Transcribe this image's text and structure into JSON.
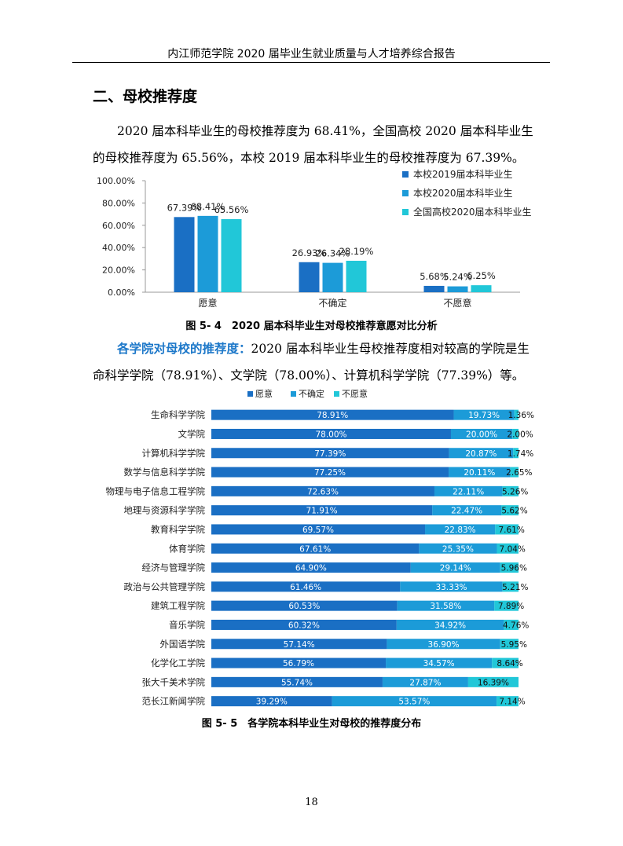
{
  "header": {
    "title": "内江师范学院 2020 届毕业生就业质量与人才培养综合报告"
  },
  "section": {
    "title": "二、母校推荐度"
  },
  "paragraph1": {
    "text": "2020 届本科毕业生的母校推荐度为 68.41%，全国高校 2020 届本科毕业生的母校推荐度为 65.56%，本校 2019 届本科毕业生的母校推荐度为 67.39%。"
  },
  "figure1": {
    "caption": "图 5- 4　2020 届本科毕业生对母校推荐意愿对比分析"
  },
  "paragraph2": {
    "lead": "各学院对母校的推荐度：",
    "text": "2020 届本科毕业生母校推荐度相对较高的学院是生命科学学院（78.91%）、文学院（78.00%）、计算机科学学院（77.39%）等。"
  },
  "figure2": {
    "caption": "图 5- 5　各学院本科毕业生对母校的推荐度分布"
  },
  "page_number": "18",
  "colors": {
    "dark_blue": "#1a6fc4",
    "mid_blue": "#1c9bd8",
    "cyan": "#21c7d8",
    "accent_text": "#1d78c9"
  },
  "chart_data": [
    {
      "type": "bar",
      "title": "",
      "categories": [
        "愿意",
        "不确定",
        "不愿意"
      ],
      "ylim": [
        0,
        100
      ],
      "y_ticks": [
        "0.00%",
        "20.00%",
        "40.00%",
        "60.00%",
        "80.00%",
        "100.00%"
      ],
      "legend_position": "top-right",
      "series": [
        {
          "name": "本校2019届本科毕业生",
          "values": [
            67.39,
            26.93,
            5.68
          ],
          "labels": [
            "67.39%",
            "26.93%",
            "5.68%"
          ],
          "color": "#1a6fc4"
        },
        {
          "name": "本校2020届本科毕业生",
          "values": [
            68.41,
            26.34,
            5.24
          ],
          "labels": [
            "68.41%",
            "26.34%",
            "5.24%"
          ],
          "color": "#1c9bd8"
        },
        {
          "name": "全国高校2020届本科毕业生",
          "values": [
            65.56,
            28.19,
            6.25
          ],
          "labels": [
            "65.56%",
            "28.19%",
            "6.25%"
          ],
          "color": "#21c7d8"
        }
      ]
    },
    {
      "type": "bar",
      "stacked": true,
      "orientation": "horizontal",
      "legend_position": "top",
      "categories": [
        "生命科学学院",
        "文学院",
        "计算机科学学院",
        "数学与信息科学学院",
        "物理与电子信息工程学院",
        "地理与资源科学学院",
        "教育科学学院",
        "体育学院",
        "经济与管理学院",
        "政治与公共管理学院",
        "建筑工程学院",
        "音乐学院",
        "外国语学院",
        "化学化工学院",
        "张大千美术学院",
        "范长江新闻学院"
      ],
      "series": [
        {
          "name": "愿意",
          "color": "#1a6fc4",
          "values": [
            78.91,
            78.0,
            77.39,
            77.25,
            72.63,
            71.91,
            69.57,
            67.61,
            64.9,
            61.46,
            60.53,
            60.32,
            57.14,
            56.79,
            55.74,
            39.29
          ],
          "labels": [
            "78.91%",
            "78.00%",
            "77.39%",
            "77.25%",
            "72.63%",
            "71.91%",
            "69.57%",
            "67.61%",
            "64.90%",
            "61.46%",
            "60.53%",
            "60.32%",
            "57.14%",
            "56.79%",
            "55.74%",
            "39.29%"
          ]
        },
        {
          "name": "不确定",
          "color": "#1c9bd8",
          "values": [
            19.73,
            20.0,
            20.87,
            20.11,
            22.11,
            22.47,
            22.83,
            25.35,
            29.14,
            33.33,
            31.58,
            34.92,
            36.9,
            34.57,
            27.87,
            53.57
          ],
          "labels": [
            "19.73%",
            "20.00%",
            "20.87%",
            "20.11%",
            "22.11%",
            "22.47%",
            "22.83%",
            "25.35%",
            "29.14%",
            "33.33%",
            "31.58%",
            "34.92%",
            "36.90%",
            "34.57%",
            "27.87%",
            "53.57%"
          ]
        },
        {
          "name": "不愿意",
          "color": "#21c7d8",
          "values": [
            1.36,
            2.0,
            1.74,
            2.65,
            5.26,
            5.62,
            7.61,
            7.04,
            5.96,
            5.21,
            7.89,
            4.76,
            5.95,
            8.64,
            16.39,
            7.14
          ],
          "labels": [
            "1.36%",
            "2.00%",
            "1.74%",
            "2.65%",
            "5.26%",
            "5.62%",
            "7.61%",
            "7.04%",
            "5.96%",
            "5.21%",
            "7.89%",
            "4.76%",
            "5.95%",
            "8.64%",
            "16.39%",
            "7.14%"
          ]
        }
      ]
    }
  ]
}
